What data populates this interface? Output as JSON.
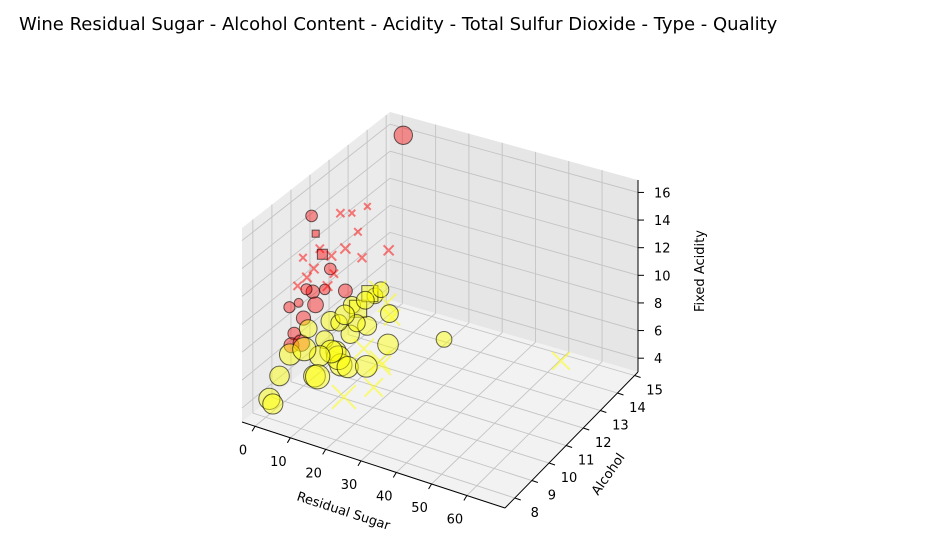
{
  "chart_data": {
    "type": "scatter",
    "projection": "3d",
    "title": "Wine Residual Sugar - Alcohol Content - Acidity - Total Sulfur Dioxide - Type - Quality",
    "xlabel": "Residual Sugar",
    "ylabel": "Alcohol",
    "zlabel": "Fixed Acidity",
    "xlim": [
      -3.7,
      70.8
    ],
    "ylim": [
      7.43,
      15.2
    ],
    "zlim": [
      3.0,
      16.9
    ],
    "xticks": [
      "0",
      "10",
      "20",
      "30",
      "40",
      "50",
      "60"
    ],
    "yticks": [
      "8",
      "9",
      "10",
      "11",
      "12",
      "13",
      "14",
      "15"
    ],
    "zticks": [
      "4",
      "6",
      "8",
      "10",
      "12",
      "14",
      "16"
    ],
    "grid": true,
    "encoding": {
      "color": "type",
      "size": "total sulfur dioxide",
      "marker": "quality"
    },
    "point_fields": [
      "residual_sugar",
      "alcohol",
      "fixed_acidity",
      "total_sulfur_dioxide",
      "marker"
    ],
    "series": [
      {
        "color": "#ff0000",
        "points": [
          [
            2.0,
            9.8,
            11.2,
            40,
            "x"
          ],
          [
            1.9,
            10.5,
            12.5,
            30,
            "x"
          ],
          [
            2.5,
            9.5,
            13.0,
            25,
            "x"
          ],
          [
            2.2,
            11.0,
            10.5,
            60,
            "o"
          ],
          [
            1.8,
            9.4,
            9.8,
            35,
            "o"
          ],
          [
            2.6,
            10.0,
            10.0,
            80,
            "o"
          ],
          [
            3.0,
            12.0,
            13.5,
            20,
            "x"
          ],
          [
            2.1,
            9.6,
            8.5,
            90,
            "o"
          ],
          [
            1.7,
            10.8,
            9.2,
            50,
            "o"
          ],
          [
            2.4,
            11.5,
            14.0,
            30,
            "x"
          ],
          [
            4.0,
            9.8,
            12.0,
            40,
            "x"
          ],
          [
            2.0,
            12.5,
            11.5,
            25,
            "x"
          ],
          [
            1.6,
            9.2,
            7.8,
            70,
            "o"
          ],
          [
            2.3,
            10.2,
            8.8,
            110,
            "o"
          ],
          [
            6.0,
            10.5,
            11.0,
            30,
            "x"
          ],
          [
            2.8,
            9.9,
            15.6,
            60,
            "o"
          ],
          [
            5.5,
            11.2,
            12.0,
            45,
            "x"
          ],
          [
            2.0,
            13.0,
            12.8,
            20,
            "x"
          ],
          [
            1.9,
            9.0,
            7.2,
            100,
            "o"
          ],
          [
            2.5,
            10.8,
            9.5,
            40,
            "x"
          ],
          [
            3.5,
            9.5,
            10.8,
            55,
            "o"
          ],
          [
            2.2,
            11.8,
            8.0,
            85,
            "o"
          ],
          [
            1.5,
            9.4,
            11.0,
            30,
            "x"
          ],
          [
            8.0,
            10.0,
            13.0,
            40,
            "x"
          ],
          [
            2.7,
            14.0,
            8.5,
            45,
            "x"
          ],
          [
            2.0,
            9.5,
            6.8,
            120,
            "o"
          ],
          [
            2.4,
            8.8,
            10.2,
            55,
            "o"
          ],
          [
            3.2,
            12.5,
            9.7,
            35,
            "x"
          ],
          [
            1.8,
            10.3,
            13.8,
            35,
            "s"
          ],
          [
            2.1,
            10.6,
            12.0,
            70,
            "s"
          ],
          [
            2.0,
            14.9,
            15.9,
            150,
            "o"
          ]
        ]
      },
      {
        "color": "#ffff00",
        "points": [
          [
            6.0,
            10.0,
            6.8,
            140,
            "o"
          ],
          [
            1.5,
            9.0,
            6.5,
            200,
            "o"
          ],
          [
            12.0,
            9.5,
            7.0,
            180,
            "o"
          ],
          [
            8.0,
            11.0,
            6.2,
            150,
            "o"
          ],
          [
            3.0,
            12.0,
            6.8,
            130,
            "o"
          ],
          [
            15.0,
            9.2,
            6.6,
            220,
            "o"
          ],
          [
            5.0,
            10.5,
            7.5,
            160,
            "o"
          ],
          [
            2.0,
            11.5,
            6.0,
            120,
            "o"
          ],
          [
            10.0,
            10.0,
            5.8,
            250,
            "o"
          ],
          [
            7.0,
            12.5,
            7.2,
            110,
            "o"
          ],
          [
            18.0,
            9.0,
            6.9,
            200,
            "o"
          ],
          [
            1.2,
            8.5,
            5.5,
            170,
            "o"
          ],
          [
            4.0,
            9.5,
            8.0,
            140,
            "o"
          ],
          [
            14.0,
            10.8,
            7.5,
            160,
            "o"
          ],
          [
            9.0,
            9.8,
            6.4,
            230,
            "o"
          ],
          [
            20.0,
            9.5,
            7.8,
            180,
            "x"
          ],
          [
            16.0,
            11.5,
            8.5,
            150,
            "x"
          ],
          [
            12.0,
            12.5,
            6.0,
            120,
            "x"
          ],
          [
            22.0,
            10.0,
            6.5,
            200,
            "x"
          ],
          [
            18.0,
            8.8,
            5.0,
            250,
            "x"
          ],
          [
            25.0,
            9.5,
            7.0,
            170,
            "x"
          ],
          [
            13.0,
            10.5,
            9.0,
            200,
            "s"
          ],
          [
            11.0,
            11.5,
            8.8,
            180,
            "s"
          ],
          [
            6.0,
            13.0,
            7.0,
            110,
            "o"
          ],
          [
            3.5,
            10.2,
            5.2,
            190,
            "o"
          ],
          [
            31.6,
            11.7,
            6.8,
            110,
            "o"
          ],
          [
            65.8,
            11.7,
            7.8,
            140,
            "x"
          ],
          [
            1.0,
            8.0,
            4.4,
            200,
            "o"
          ],
          [
            0.9,
            8.2,
            3.8,
            180,
            "o"
          ],
          [
            8.5,
            9.0,
            5.5,
            210,
            "o"
          ],
          [
            5.5,
            11.8,
            5.9,
            130,
            "o"
          ],
          [
            2.5,
            12.8,
            6.2,
            140,
            "o"
          ],
          [
            17.0,
            10.2,
            5.5,
            210,
            "o"
          ],
          [
            11.0,
            8.7,
            6.0,
            260,
            "o"
          ],
          [
            7.5,
            10.8,
            7.8,
            170,
            "o"
          ],
          [
            14.0,
            12.0,
            7.0,
            140,
            "o"
          ],
          [
            4.5,
            9.2,
            6.9,
            240,
            "o"
          ],
          [
            26.0,
            8.9,
            6.2,
            150,
            "x"
          ],
          [
            9.5,
            12.2,
            8.2,
            130,
            "x"
          ],
          [
            19.0,
            11.0,
            6.3,
            190,
            "o"
          ]
        ]
      }
    ]
  }
}
